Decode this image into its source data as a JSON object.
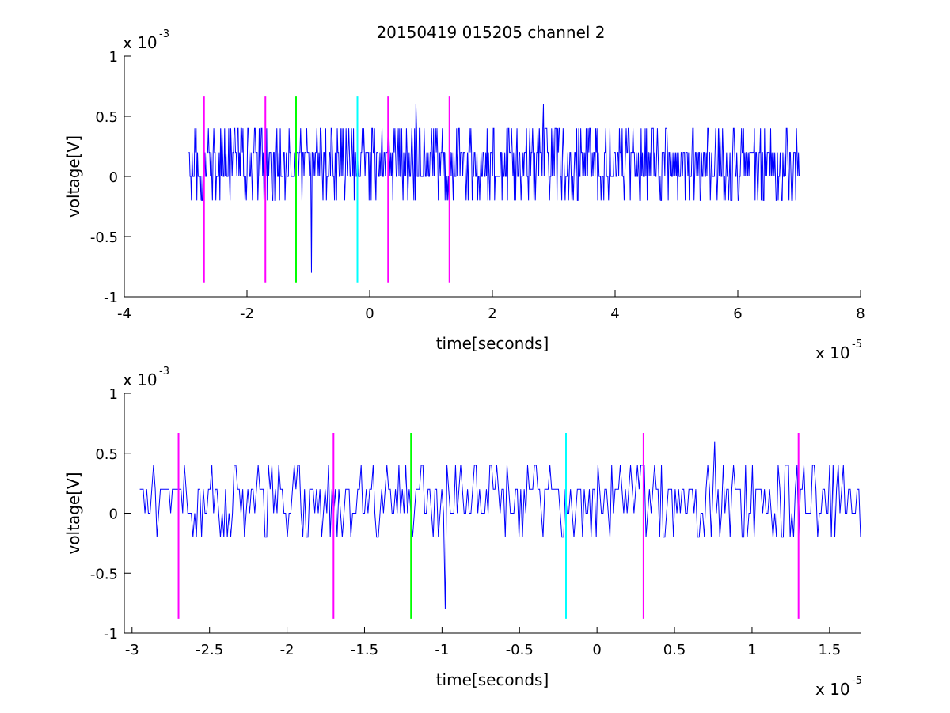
{
  "figure": {
    "title": "20150419 015205 channel 2",
    "background": "#ffffff"
  },
  "chart_data": [
    {
      "type": "line",
      "xlabel": "time[seconds]",
      "ylabel": "voltage[V]",
      "x_exponent": "x 10",
      "x_exponent_power": "-5",
      "y_exponent": "x 10",
      "y_exponent_power": "-3",
      "xlim": [
        -4,
        8
      ],
      "ylim": [
        -1,
        1
      ],
      "xticks": [
        -4,
        -2,
        0,
        2,
        4,
        6,
        8
      ],
      "xtick_labels": [
        "-4",
        "-2",
        "0",
        "2",
        "4",
        "6",
        "8"
      ],
      "yticks": [
        -1,
        -0.5,
        0,
        0.5,
        1
      ],
      "ytick_labels": [
        "-1",
        "-0.5",
        "0",
        "0.5",
        "1"
      ],
      "grid": false,
      "signal": {
        "color": "#0000ff",
        "x_start": -2.95,
        "x_end": 7.0,
        "levels": [
          -0.2,
          0,
          0.2,
          0.4
        ],
        "spikes": [
          {
            "x": -0.95,
            "y": -0.8
          },
          {
            "x": 0.75,
            "y": 0.6
          },
          {
            "x": 2.83,
            "y": 0.6
          }
        ]
      },
      "markers": [
        {
          "x": -2.7,
          "color": "#ff00ff",
          "ymin": -0.88,
          "ymax": 0.67
        },
        {
          "x": -1.7,
          "color": "#ff00ff",
          "ymin": -0.88,
          "ymax": 0.67
        },
        {
          "x": -1.2,
          "color": "#00ff00",
          "ymin": -0.88,
          "ymax": 0.67
        },
        {
          "x": -0.2,
          "color": "#00ffff",
          "ymin": -0.88,
          "ymax": 0.67
        },
        {
          "x": 0.3,
          "color": "#ff00ff",
          "ymin": -0.88,
          "ymax": 0.67
        },
        {
          "x": 1.3,
          "color": "#ff00ff",
          "ymin": -0.88,
          "ymax": 0.67
        }
      ]
    },
    {
      "type": "line",
      "xlabel": "time[seconds]",
      "ylabel": "voltage[V]",
      "x_exponent": "x 10",
      "x_exponent_power": "-5",
      "y_exponent": "x 10",
      "y_exponent_power": "-3",
      "xlim": [
        -3.05,
        1.7
      ],
      "ylim": [
        -1,
        1
      ],
      "xticks": [
        -3,
        -2.5,
        -2,
        -1.5,
        -1,
        -0.5,
        0,
        0.5,
        1,
        1.5
      ],
      "xtick_labels": [
        "-3",
        "-2.5",
        "-2",
        "-1.5",
        "-1",
        "-0.5",
        "0",
        "0.5",
        "1",
        "1.5"
      ],
      "yticks": [
        -1,
        -0.5,
        0,
        0.5,
        1
      ],
      "ytick_labels": [
        "-1",
        "-0.5",
        "0",
        "0.5",
        "1"
      ],
      "grid": false,
      "signal": {
        "color": "#0000ff",
        "x_start": -2.95,
        "x_end": 1.7,
        "levels": [
          -0.2,
          0,
          0.2,
          0.4
        ],
        "spikes": [
          {
            "x": -0.98,
            "y": -0.8
          },
          {
            "x": 0.76,
            "y": 0.6
          }
        ]
      },
      "markers": [
        {
          "x": -2.7,
          "color": "#ff00ff",
          "ymin": -0.88,
          "ymax": 0.67
        },
        {
          "x": -1.7,
          "color": "#ff00ff",
          "ymin": -0.88,
          "ymax": 0.67
        },
        {
          "x": -1.2,
          "color": "#00ff00",
          "ymin": -0.88,
          "ymax": 0.67
        },
        {
          "x": -0.2,
          "color": "#00ffff",
          "ymin": -0.88,
          "ymax": 0.67
        },
        {
          "x": 0.3,
          "color": "#ff00ff",
          "ymin": -0.88,
          "ymax": 0.67
        },
        {
          "x": 1.3,
          "color": "#ff00ff",
          "ymin": -0.88,
          "ymax": 0.67
        }
      ]
    }
  ]
}
